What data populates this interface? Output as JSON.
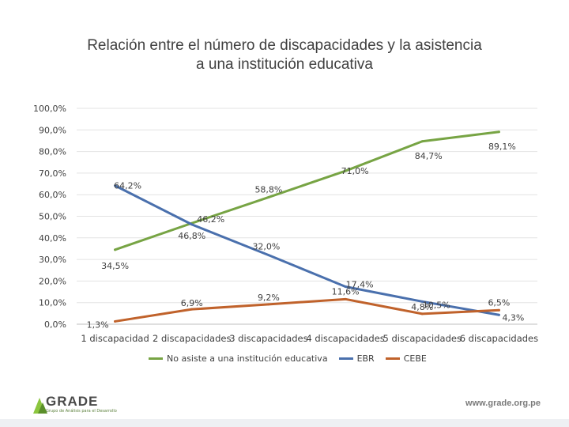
{
  "title_lines": [
    "Relación entre el número de discapacidades y la asistencia",
    "a una institución educativa"
  ],
  "chart_data": {
    "type": "line",
    "title": "Relación entre el número de discapacidades y la asistencia a una institución educativa",
    "categories": [
      "1 discapacidad",
      "2 discapacidades",
      "3 discapacidades",
      "4 discapacidades",
      "5 discapacidades",
      "6 discapacidades"
    ],
    "ylim": [
      0,
      100
    ],
    "yticks": [
      "0,0%",
      "10,0%",
      "20,0%",
      "30,0%",
      "40,0%",
      "50,0%",
      "60,0%",
      "70,0%",
      "80,0%",
      "90,0%",
      "100,0%"
    ],
    "grid": true,
    "legend_position": "bottom",
    "series": [
      {
        "name": "No asiste a una institución educativa",
        "color": "#77a444",
        "values": [
          34.5,
          46.8,
          58.8,
          71.0,
          84.7,
          89.1
        ],
        "labels": [
          "34,5%",
          "46,8%",
          "58,8%",
          "71,0%",
          "84,7%",
          "89,1%"
        ]
      },
      {
        "name": "EBR",
        "color": "#4a70ad",
        "values": [
          64.2,
          46.2,
          32.0,
          17.4,
          10.5,
          4.3
        ],
        "labels": [
          "64,2%",
          "46,2%",
          "32,0%",
          "17,4%",
          "10,5%",
          "4,3%"
        ]
      },
      {
        "name": "CEBE",
        "color": "#c0622b",
        "values": [
          1.3,
          6.9,
          9.2,
          11.6,
          4.8,
          6.5
        ],
        "labels": [
          "1,3%",
          "6,9%",
          "9,2%",
          "11,6%",
          "4,8%",
          "6,5%"
        ]
      }
    ]
  },
  "footer": {
    "logo_name": "GRADE",
    "logo_tagline": "Grupo de Análisis para el Desarrollo",
    "website": "www.grade.org.pe"
  }
}
